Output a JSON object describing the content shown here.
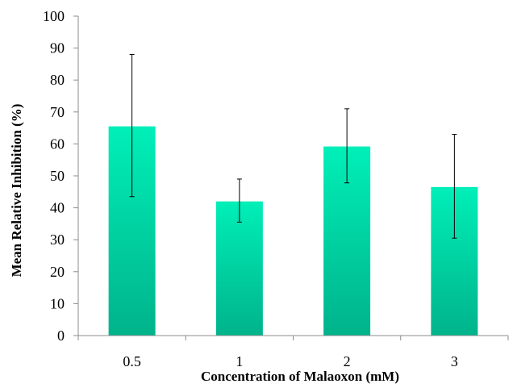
{
  "chart_data": {
    "type": "bar",
    "title": "",
    "xlabel": "Concentration of Malaoxon (mM)",
    "ylabel": "Mean Relative Inhibition (%)",
    "categories": [
      "0.5",
      "1",
      "2",
      "3"
    ],
    "values": [
      65.5,
      42,
      59.2,
      46.5
    ],
    "error_low": [
      43.5,
      35.5,
      47.8,
      30.5
    ],
    "error_high": [
      88,
      49,
      71,
      63
    ],
    "ylim": [
      0,
      100
    ],
    "yticks": [
      "0",
      "10",
      "20",
      "30",
      "40",
      "50",
      "60",
      "70",
      "80",
      "90",
      "100"
    ],
    "grid": false,
    "legend": "none",
    "colors": {
      "bar_top": "#00efb8",
      "bar_bottom": "#00b38b",
      "axis": "#8c8c8c",
      "error_bar": "#000000"
    }
  }
}
